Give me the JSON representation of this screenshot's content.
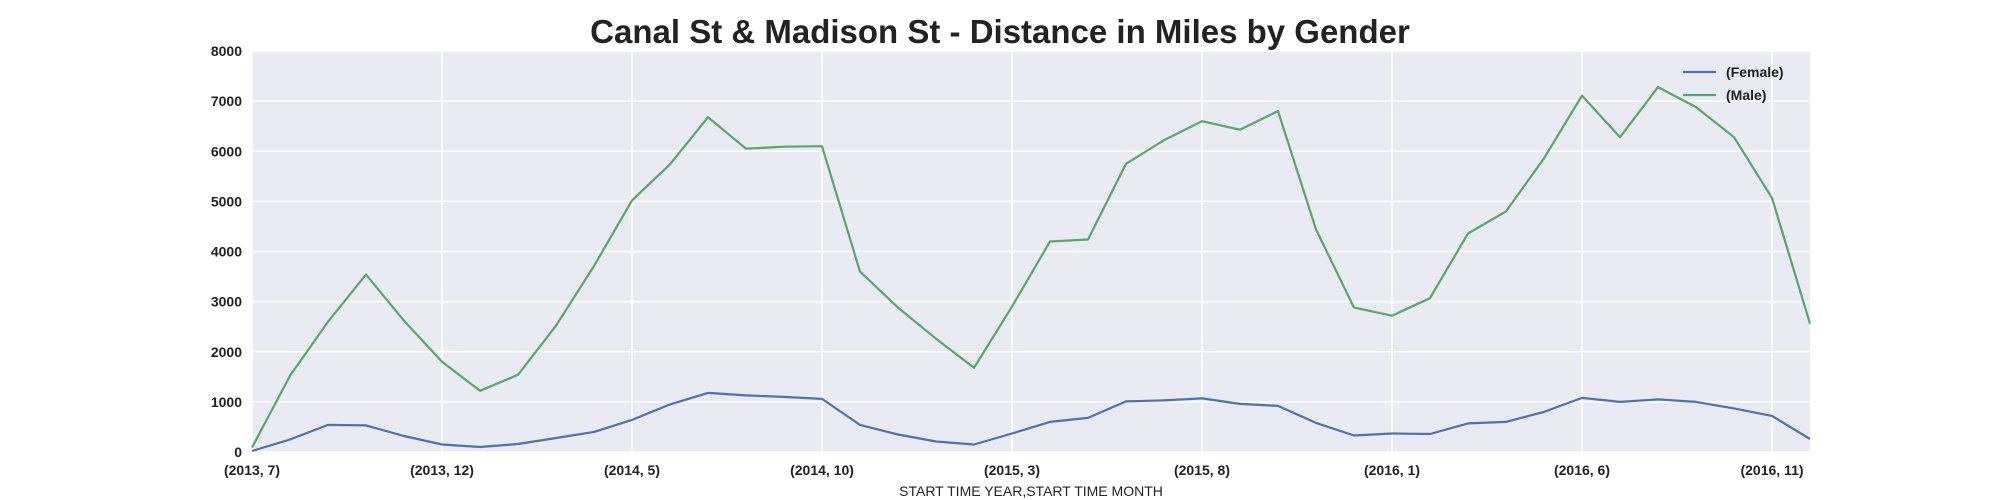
{
  "chart_data": {
    "type": "line",
    "title": "Canal St & Madison St - Distance in Miles by Gender",
    "xlabel": "START TIME YEAR,START TIME MONTH",
    "ylabel": "",
    "ylim": [
      0,
      8000
    ],
    "yticks": [
      "0",
      "1000",
      "2000",
      "3000",
      "4000",
      "5000",
      "6000",
      "7000",
      "8000"
    ],
    "x": [
      "2013-07",
      "2013-08",
      "2013-09",
      "2013-10",
      "2013-11",
      "2013-12",
      "2014-01",
      "2014-02",
      "2014-03",
      "2014-04",
      "2014-05",
      "2014-06",
      "2014-07",
      "2014-08",
      "2014-09",
      "2014-10",
      "2014-11",
      "2014-12",
      "2015-01",
      "2015-02",
      "2015-03",
      "2015-04",
      "2015-05",
      "2015-06",
      "2015-07",
      "2015-08",
      "2015-09",
      "2015-10",
      "2015-11",
      "2015-12",
      "2016-01",
      "2016-02",
      "2016-03",
      "2016-04",
      "2016-05",
      "2016-06",
      "2016-07",
      "2016-08",
      "2016-09",
      "2016-10",
      "2016-11",
      "2016-12"
    ],
    "xticks": [
      {
        "index": 0,
        "label": "(2013, 7)"
      },
      {
        "index": 5,
        "label": "(2013, 12)"
      },
      {
        "index": 10,
        "label": "(2014, 5)"
      },
      {
        "index": 15,
        "label": "(2014, 10)"
      },
      {
        "index": 20,
        "label": "(2015, 3)"
      },
      {
        "index": 25,
        "label": "(2015, 8)"
      },
      {
        "index": 30,
        "label": "(2016, 1)"
      },
      {
        "index": 35,
        "label": "(2016, 6)"
      },
      {
        "index": 40,
        "label": "(2016, 11)"
      }
    ],
    "grid": true,
    "legend_position": "top-right",
    "series": [
      {
        "name": "(Female)",
        "color": "#4c72b0",
        "values": [
          20,
          250,
          540,
          530,
          320,
          150,
          100,
          160,
          280,
          400,
          640,
          950,
          1180,
          1130,
          1100,
          1060,
          540,
          350,
          210,
          150,
          370,
          600,
          680,
          1010,
          1030,
          1070,
          960,
          920,
          580,
          330,
          370,
          360,
          570,
          600,
          800,
          1080,
          1000,
          1050,
          1000,
          870,
          720,
          260
        ]
      },
      {
        "name": "(Male)",
        "color": "#55a868",
        "values": [
          90,
          1520,
          2600,
          3540,
          2620,
          1800,
          1220,
          1540,
          2520,
          3710,
          5020,
          5740,
          6680,
          6050,
          6090,
          6100,
          3600,
          2880,
          2260,
          1680,
          2900,
          4200,
          4240,
          5750,
          6220,
          6600,
          6430,
          6800,
          4440,
          2880,
          2720,
          3070,
          4360,
          4800,
          5860,
          7110,
          6280,
          7280,
          6880,
          6280,
          5070,
          2560
        ]
      }
    ]
  }
}
